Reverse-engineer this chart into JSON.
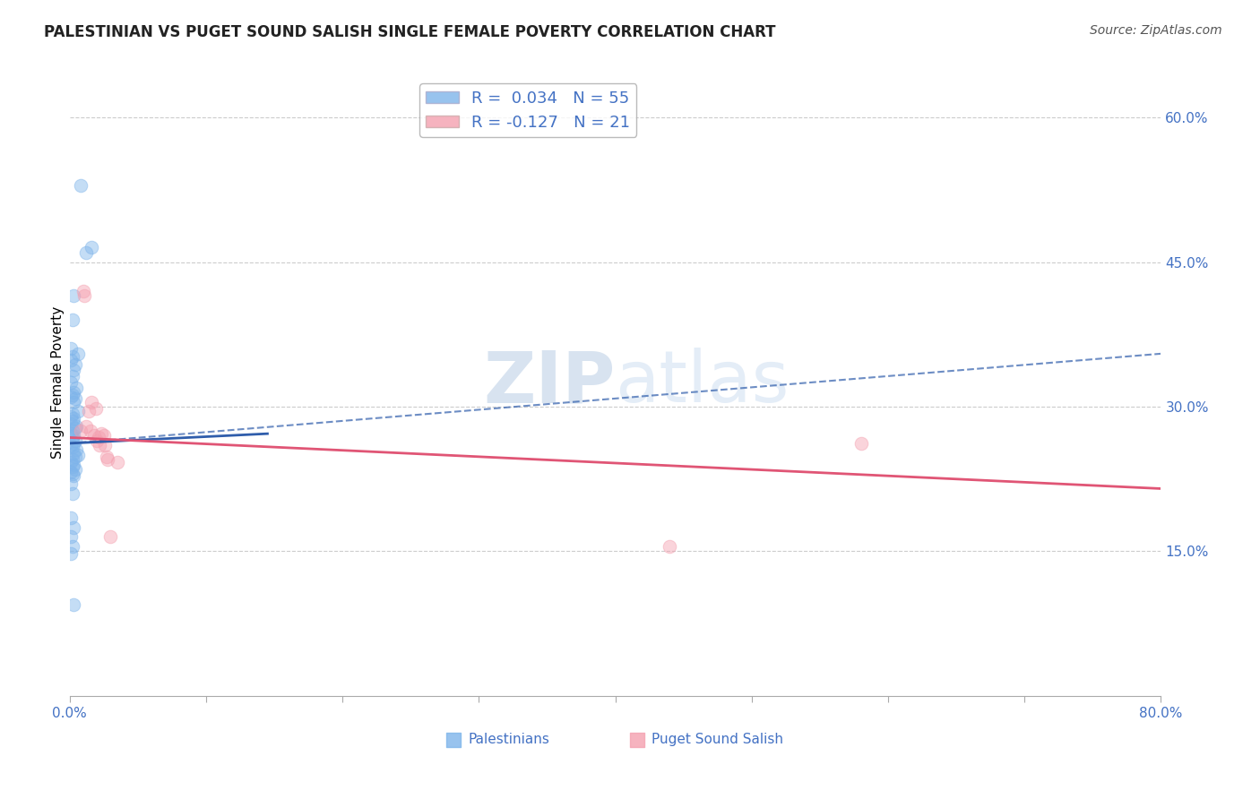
{
  "title": "PALESTINIAN VS PUGET SOUND SALISH SINGLE FEMALE POVERTY CORRELATION CHART",
  "source": "Source: ZipAtlas.com",
  "ylabel": "Single Female Poverty",
  "xlim": [
    0,
    0.8
  ],
  "ylim": [
    0,
    0.65
  ],
  "right_yticks": [
    0.15,
    0.3,
    0.45,
    0.6
  ],
  "right_yticklabels": [
    "15.0%",
    "30.0%",
    "45.0%",
    "60.0%"
  ],
  "xtick_positions": [
    0.0,
    0.1,
    0.2,
    0.3,
    0.4,
    0.5,
    0.6,
    0.7,
    0.8
  ],
  "xticklabels": [
    "0.0%",
    "",
    "",
    "",
    "",
    "",
    "",
    "",
    "80.0%"
  ],
  "legend_entries": [
    {
      "label": "R =  0.034   N = 55",
      "color": "#7eb4ea"
    },
    {
      "label": "R = -0.127   N = 21",
      "color": "#f4a0b0"
    }
  ],
  "palestinians": {
    "x": [
      0.008,
      0.016,
      0.012,
      0.003,
      0.002,
      0.001,
      0.006,
      0.002,
      0.001,
      0.004,
      0.003,
      0.002,
      0.001,
      0.005,
      0.003,
      0.002,
      0.001,
      0.004,
      0.003,
      0.006,
      0.002,
      0.001,
      0.003,
      0.002,
      0.001,
      0.005,
      0.004,
      0.002,
      0.001,
      0.003,
      0.002,
      0.004,
      0.003,
      0.001,
      0.002,
      0.005,
      0.003,
      0.006,
      0.004,
      0.002,
      0.001,
      0.003,
      0.002,
      0.004,
      0.001,
      0.002,
      0.003,
      0.001,
      0.002,
      0.001,
      0.003,
      0.001,
      0.002,
      0.001,
      0.003
    ],
    "y": [
      0.53,
      0.465,
      0.46,
      0.415,
      0.39,
      0.36,
      0.355,
      0.352,
      0.348,
      0.344,
      0.338,
      0.332,
      0.325,
      0.32,
      0.315,
      0.312,
      0.31,
      0.308,
      0.305,
      0.295,
      0.293,
      0.29,
      0.288,
      0.285,
      0.282,
      0.28,
      0.278,
      0.275,
      0.272,
      0.27,
      0.268,
      0.265,
      0.262,
      0.26,
      0.258,
      0.255,
      0.252,
      0.25,
      0.248,
      0.245,
      0.242,
      0.24,
      0.238,
      0.235,
      0.232,
      0.23,
      0.228,
      0.22,
      0.21,
      0.185,
      0.175,
      0.165,
      0.155,
      0.148,
      0.095
    ],
    "color": "#7eb4ea"
  },
  "puget_sound_salish": {
    "x": [
      0.01,
      0.011,
      0.025,
      0.02,
      0.022,
      0.014,
      0.012,
      0.008,
      0.58,
      0.44,
      0.016,
      0.019,
      0.023,
      0.026,
      0.027,
      0.028,
      0.035,
      0.015,
      0.018,
      0.021,
      0.03
    ],
    "y": [
      0.42,
      0.415,
      0.27,
      0.265,
      0.26,
      0.295,
      0.28,
      0.275,
      0.262,
      0.155,
      0.305,
      0.298,
      0.272,
      0.26,
      0.248,
      0.245,
      0.242,
      0.275,
      0.27,
      0.268,
      0.165
    ],
    "color": "#f4a0b0"
  },
  "blue_line_solid": {
    "x0": 0.0,
    "y0": 0.262,
    "x1": 0.145,
    "y1": 0.272
  },
  "blue_line_dashed": {
    "x0": 0.0,
    "y0": 0.262,
    "x1": 0.8,
    "y1": 0.355
  },
  "pink_line": {
    "x0": 0.0,
    "y0": 0.268,
    "x1": 0.8,
    "y1": 0.215
  },
  "watermark": "ZIPatlas",
  "background_color": "#ffffff",
  "grid_color": "#cccccc",
  "title_fontsize": 12,
  "axis_label_fontsize": 11,
  "tick_fontsize": 11,
  "marker_size": 110,
  "marker_alpha": 0.45,
  "trend_blue_color": "#2f5dab",
  "trend_pink_color": "#e05575"
}
